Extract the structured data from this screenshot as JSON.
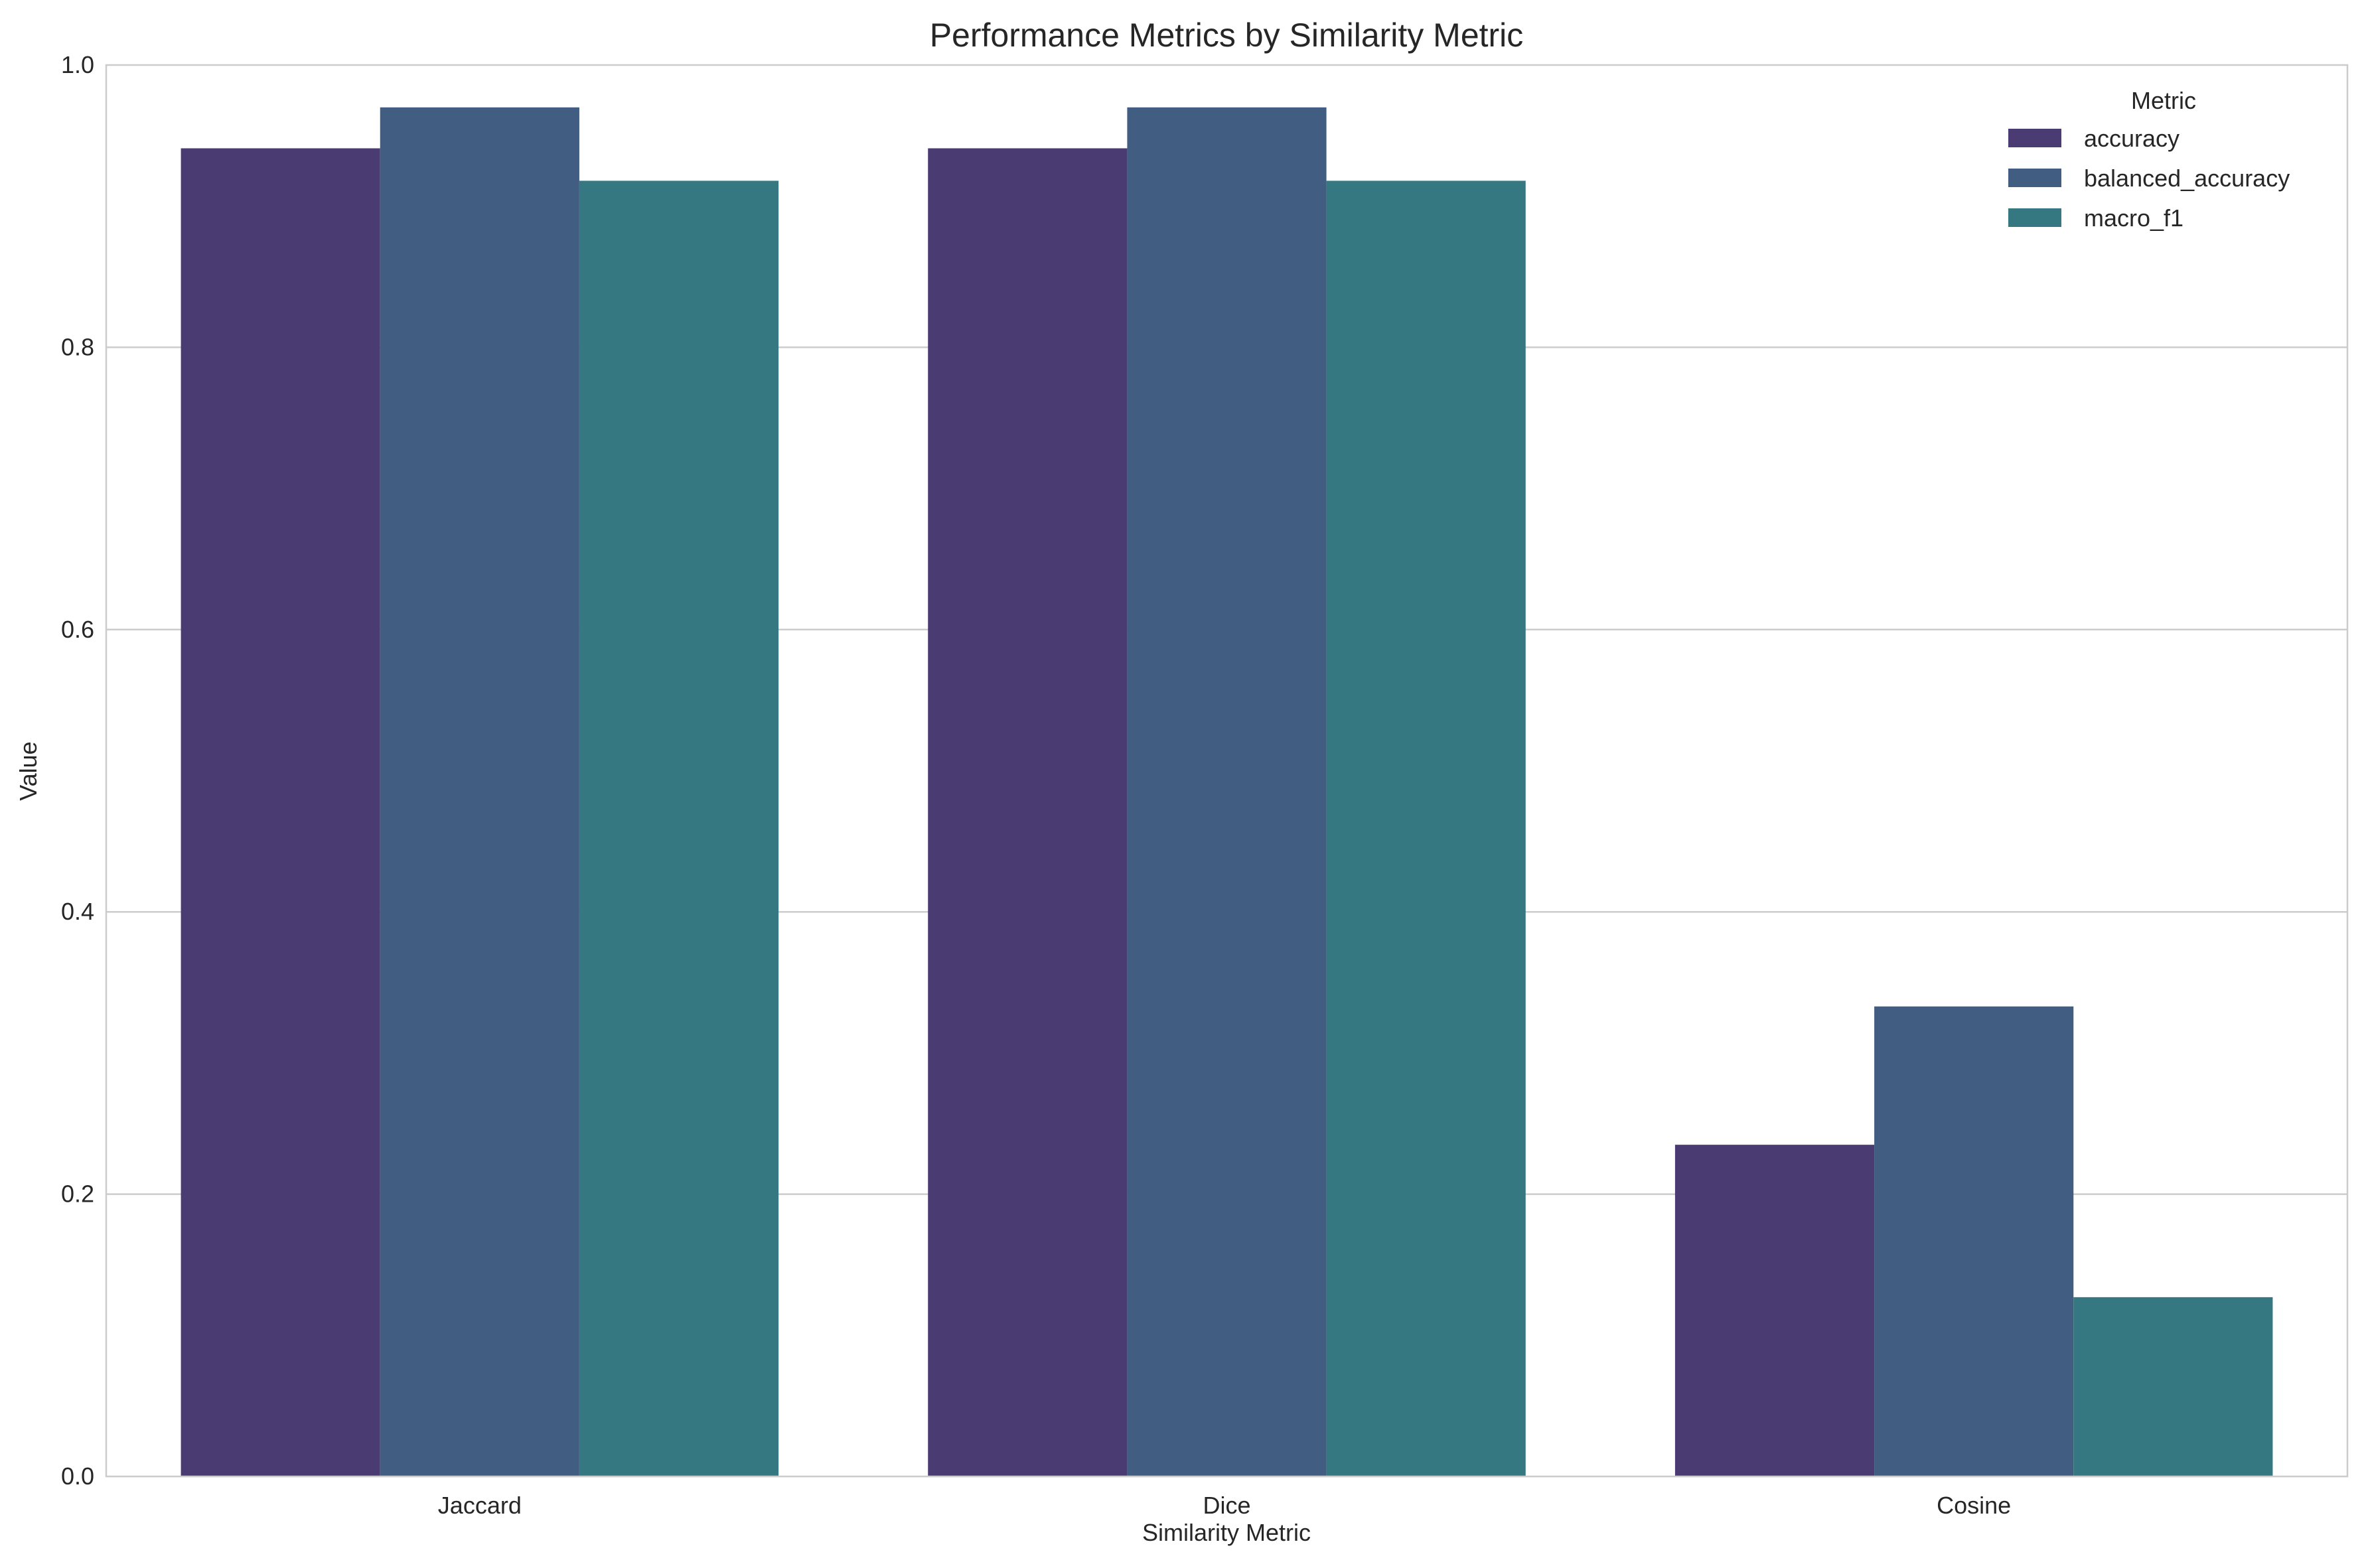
{
  "chart_data": {
    "type": "bar",
    "title": "Performance Metrics by Similarity Metric",
    "xlabel": "Similarity Metric",
    "ylabel": "Value",
    "categories": [
      "Jaccard",
      "Dice",
      "Cosine"
    ],
    "series": [
      {
        "name": "accuracy",
        "values": [
          0.941,
          0.941,
          0.235
        ],
        "color": "#4a3b73"
      },
      {
        "name": "balanced_accuracy",
        "values": [
          0.97,
          0.97,
          0.333
        ],
        "color": "#415e82"
      },
      {
        "name": "macro_f1",
        "values": [
          0.918,
          0.918,
          0.127
        ],
        "color": "#357881"
      }
    ],
    "ylim": [
      0,
      1.0
    ],
    "yticks": [
      "0.0",
      "0.2",
      "0.4",
      "0.6",
      "0.8",
      "1.0"
    ],
    "grid": "horizontal",
    "legend": {
      "title": "Metric",
      "placement": "top-right"
    }
  }
}
